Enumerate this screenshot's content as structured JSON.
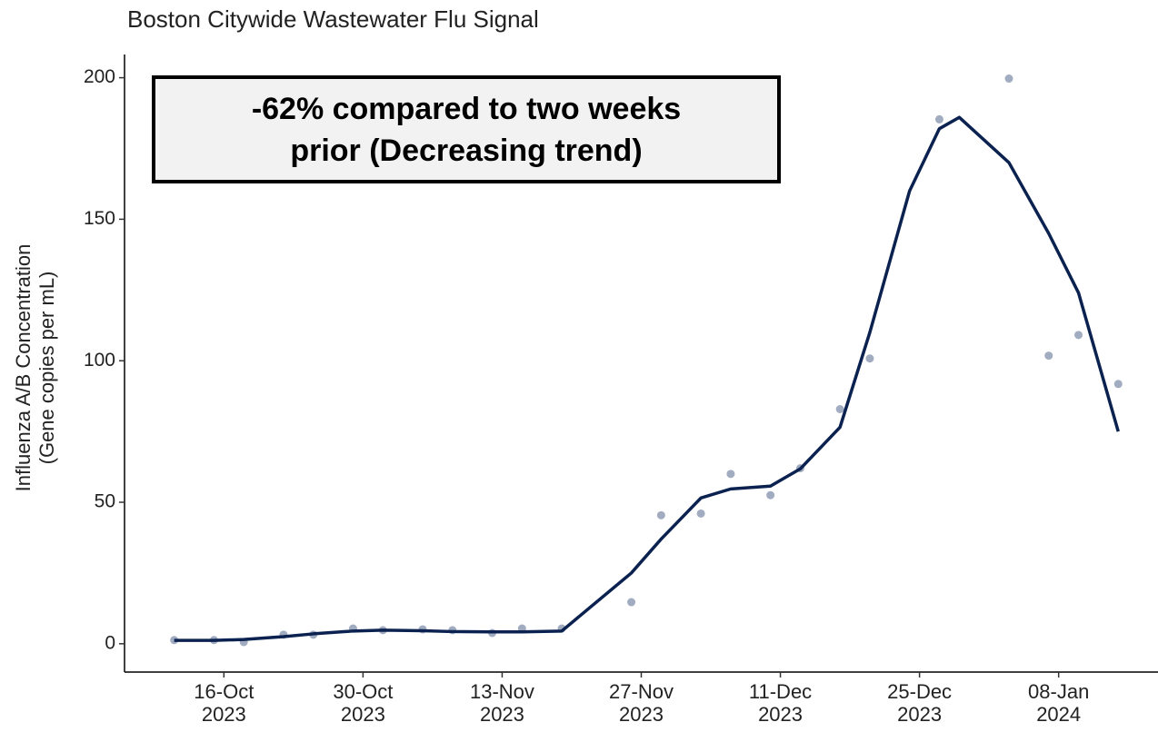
{
  "chart_data": {
    "type": "scatter",
    "title": "Boston Citywide Wastewater Flu Signal",
    "ylabel": [
      "Influenza A/B Concentration",
      "(Gene copies per mL)"
    ],
    "annotation": "-62% compared to two weeks prior (Decreasing trend)",
    "points": {
      "color": "#8a97b1",
      "x": [
        "2023-10-11",
        "2023-10-15",
        "2023-10-18",
        "2023-10-22",
        "2023-10-25",
        "2023-10-29",
        "2023-11-01",
        "2023-11-05",
        "2023-11-08",
        "2023-11-12",
        "2023-11-15",
        "2023-11-19",
        "2023-11-26",
        "2023-11-29",
        "2023-12-03",
        "2023-12-06",
        "2023-12-10",
        "2023-12-13",
        "2023-12-17",
        "2023-12-20",
        "2023-12-27",
        "2024-01-03",
        "2024-01-07",
        "2024-01-10",
        "2024-01-14"
      ],
      "values": [
        1.3,
        1.3,
        0.6,
        3.2,
        3.2,
        5.4,
        4.8,
        5.1,
        4.8,
        3.8,
        5.4,
        5.4,
        14.7,
        45.4,
        46,
        60,
        52.5,
        62,
        82.9,
        100.8,
        185.3,
        199.7,
        101.8,
        109.1,
        91.8
      ]
    },
    "trend": {
      "color": "#0b2250",
      "x": [
        "2023-10-11",
        "2023-10-15",
        "2023-10-18",
        "2023-10-22",
        "2023-10-25",
        "2023-10-29",
        "2023-11-01",
        "2023-11-05",
        "2023-11-08",
        "2023-11-12",
        "2023-11-15",
        "2023-11-19",
        "2023-11-26",
        "2023-11-29",
        "2023-12-03",
        "2023-12-06",
        "2023-12-10",
        "2023-12-13",
        "2023-12-17",
        "2023-12-20",
        "2023-12-24",
        "2023-12-27",
        "2023-12-29",
        "2024-01-03",
        "2024-01-07",
        "2024-01-10",
        "2024-01-14"
      ],
      "values": [
        1.2,
        1.2,
        1.5,
        2.5,
        3.5,
        4.5,
        4.8,
        4.6,
        4.3,
        4.2,
        4.2,
        4.5,
        25,
        37,
        51.5,
        54.7,
        55.7,
        61.8,
        76.5,
        110,
        160,
        182,
        186,
        170,
        145,
        124,
        75
      ]
    },
    "xlim": [
      "2023-10-06",
      "2024-01-18"
    ],
    "xticks": [
      {
        "value": "2023-10-16",
        "label": "16-Oct\n2023"
      },
      {
        "value": "2023-10-30",
        "label": "30-Oct\n2023"
      },
      {
        "value": "2023-11-13",
        "label": "13-Nov\n2023"
      },
      {
        "value": "2023-11-27",
        "label": "27-Nov\n2023"
      },
      {
        "value": "2023-12-11",
        "label": "11-Dec\n2023"
      },
      {
        "value": "2023-12-25",
        "label": "25-Dec\n2023"
      },
      {
        "value": "2024-01-08",
        "label": "08-Jan\n2024"
      }
    ],
    "ylim": [
      -10,
      205
    ],
    "yticks": [
      0,
      50,
      100,
      150,
      200
    ]
  }
}
